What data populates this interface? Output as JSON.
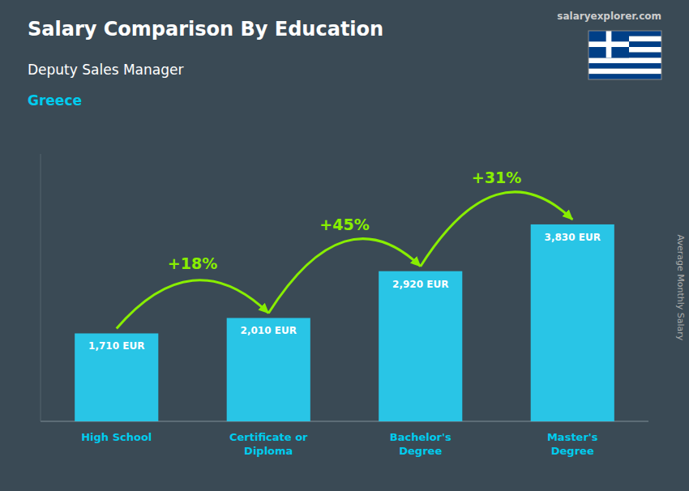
{
  "chart_data": {
    "type": "bar",
    "title": "Salary Comparison By Education",
    "subtitle": [
      "Deputy Sales Manager",
      "Greece"
    ],
    "source": "salaryexplorer.com",
    "y_label": "Average Monthly Salary",
    "categories": [
      "High School",
      "Certificate or\nDiploma",
      "Bachelor's\nDegree",
      "Master's\nDegree"
    ],
    "values": [
      1710,
      2010,
      2920,
      3830
    ],
    "value_labels": [
      "1,710 EUR",
      "2,010 EUR",
      "2,920 EUR",
      "3,830 EUR"
    ],
    "data_labels": true,
    "color": "#29c5e6",
    "ylim": [
      0,
      5200
    ],
    "tick_labels": "x",
    "grid": false,
    "annotations": [
      {
        "text": "+18%",
        "color": "#88ee00"
      },
      {
        "text": "+45%",
        "color": "#88ee00"
      },
      {
        "text": "+31%",
        "color": "#88ee00"
      }
    ]
  }
}
